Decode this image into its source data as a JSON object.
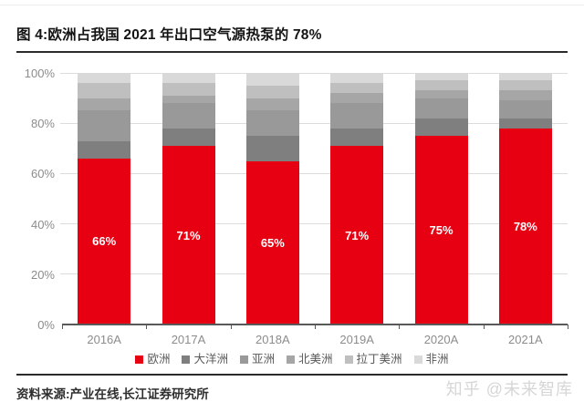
{
  "figure": {
    "title": "图 4:欧洲占我国 2021 年出口空气源热泵的 78%",
    "source": "资料来源:产业在线,长江证券研究所",
    "watermark": "知乎 @未来智库"
  },
  "chart_data": {
    "type": "bar",
    "stacked": true,
    "title": "图 4:欧洲占我国 2021 年出口空气源热泵的 78%",
    "categories": [
      "2016A",
      "2017A",
      "2018A",
      "2019A",
      "2020A",
      "2021A"
    ],
    "series": [
      {
        "name": "欧洲",
        "color": "#e60012",
        "values": [
          66,
          71,
          65,
          71,
          75,
          78
        ],
        "data_labels": [
          "66%",
          "71%",
          "65%",
          "71%",
          "75%",
          "78%"
        ]
      },
      {
        "name": "大洋洲",
        "color": "#7f7f7f",
        "values": [
          7,
          7,
          10,
          7,
          7,
          4
        ]
      },
      {
        "name": "亚洲",
        "color": "#999999",
        "values": [
          12,
          10,
          10,
          10,
          8,
          7
        ]
      },
      {
        "name": "北美洲",
        "color": "#a6a6a6",
        "values": [
          5,
          3,
          5,
          4,
          3,
          4
        ]
      },
      {
        "name": "拉丁美洲",
        "color": "#bfbfbf",
        "values": [
          6,
          5,
          5,
          4,
          4,
          4
        ]
      },
      {
        "name": "非洲",
        "color": "#d9d9d9",
        "values": [
          4,
          4,
          5,
          4,
          3,
          3
        ]
      }
    ],
    "y_ticks": [
      "0%",
      "20%",
      "40%",
      "60%",
      "80%",
      "100%"
    ],
    "ylim": [
      0,
      100
    ],
    "grid": true,
    "legend_position": "bottom"
  }
}
